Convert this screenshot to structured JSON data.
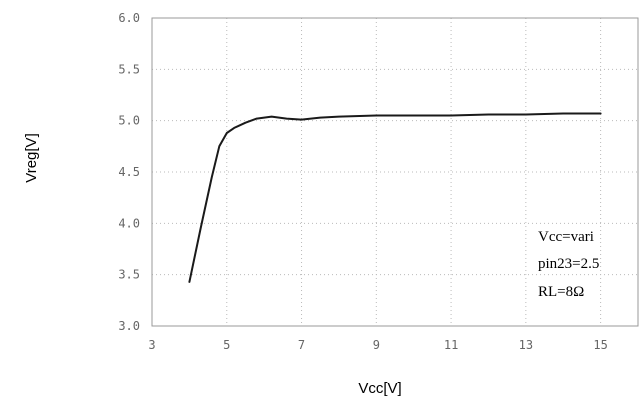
{
  "chart_data": {
    "type": "line",
    "xlabel": "Vcc[V]",
    "ylabel": "Vreg[V]",
    "xlim": [
      3,
      16
    ],
    "ylim": [
      3.0,
      6.0
    ],
    "xticks": [
      "3",
      "5",
      "7",
      "9",
      "11",
      "13",
      "15"
    ],
    "yticks": [
      "3.0",
      "3.5",
      "4.0",
      "4.5",
      "5.0",
      "5.5",
      "6.0"
    ],
    "grid": "dotted",
    "annotations": [
      "Vcc=vari",
      "pin23=2.5",
      "RL=8Ω"
    ],
    "series": [
      {
        "x": [
          4.0,
          4.3,
          4.6,
          4.8,
          5.0,
          5.2,
          5.5,
          5.8,
          6.2,
          6.6,
          7.0,
          7.5,
          8.0,
          9.0,
          10.0,
          11.0,
          12.0,
          13.0,
          14.0,
          15.0
        ],
        "y": [
          3.43,
          3.95,
          4.45,
          4.75,
          4.88,
          4.93,
          4.98,
          5.02,
          5.04,
          5.02,
          5.01,
          5.03,
          5.04,
          5.05,
          5.05,
          5.05,
          5.06,
          5.06,
          5.07,
          5.07
        ]
      }
    ]
  }
}
